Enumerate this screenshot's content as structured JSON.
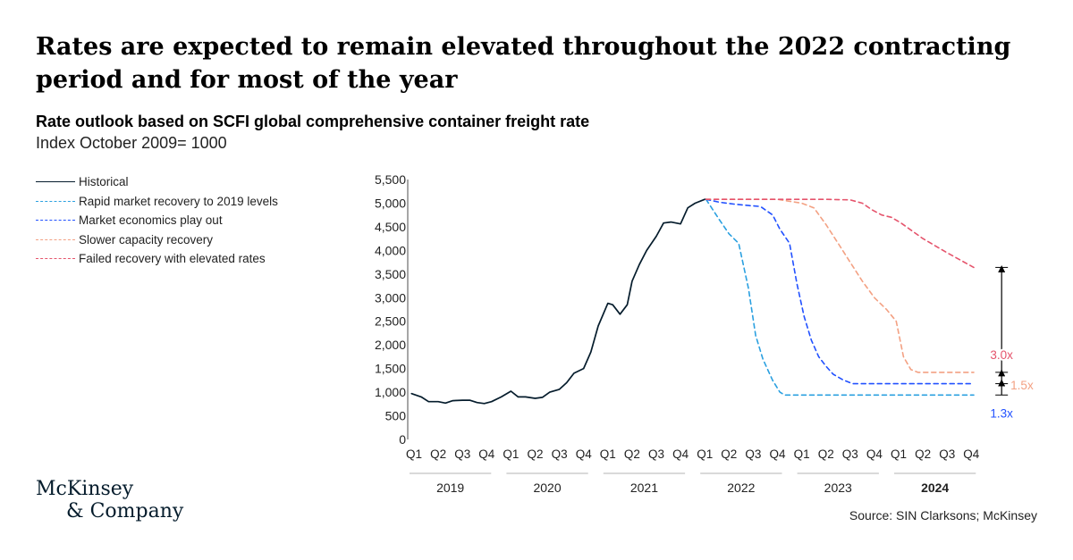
{
  "headline": "Rates are expected to remain elevated throughout the 2022 contracting period and for most of the year",
  "logo": {
    "line1": "McKinsey",
    "line2": "& Company"
  },
  "source": "Source: SIN Clarksons; McKinsey",
  "chart_data": {
    "type": "line",
    "title": "Rate outlook based on SCFI global comprehensive container freight rate",
    "subtitle": "Index October 2009= 1000",
    "xlabel": "",
    "ylabel": "",
    "ylim": [
      0,
      5500
    ],
    "y_ticks": [
      0,
      500,
      1000,
      1500,
      2000,
      2500,
      3000,
      3500,
      4000,
      4500,
      5000,
      5500
    ],
    "y_tick_labels": [
      "0",
      "500",
      "1,000",
      "1,500",
      "2,000",
      "2,500",
      "3,000",
      "3,500",
      "4,000",
      "4,500",
      "5,000",
      "5,500"
    ],
    "x_ticks": [
      "Q1",
      "Q2",
      "Q3",
      "Q4",
      "Q1",
      "Q2",
      "Q3",
      "Q4",
      "Q1",
      "Q2",
      "Q3",
      "Q4",
      "Q1",
      "Q2",
      "Q3",
      "Q4",
      "Q1",
      "Q2",
      "Q3",
      "Q4",
      "Q1",
      "Q2",
      "Q3",
      "Q4"
    ],
    "years": [
      "2019",
      "2020",
      "2021",
      "2022",
      "2023",
      "2024"
    ],
    "x_unit": "quarter index (0 = Q1 2019, 23 = Q4 2024)",
    "legend_position": "top-left",
    "grid": false,
    "series": [
      {
        "name": "Historical",
        "color": "#051c2c",
        "dash": "solid",
        "x": [
          -0.1,
          0.3,
          0.6,
          1,
          1.3,
          1.6,
          2,
          2.3,
          2.6,
          2.9,
          3.2,
          3.6,
          4,
          4.3,
          4.6,
          5,
          5.3,
          5.6,
          6,
          6.3,
          6.6,
          7,
          7.3,
          7.6,
          8,
          8.2,
          8.5,
          8.8,
          9,
          9.3,
          9.6,
          10,
          10.3,
          10.6,
          11,
          11.3,
          11.6,
          12,
          12.05
        ],
        "y": [
          970,
          900,
          800,
          800,
          770,
          820,
          830,
          830,
          780,
          760,
          800,
          900,
          1020,
          900,
          900,
          870,
          890,
          1000,
          1060,
          1200,
          1400,
          1500,
          1850,
          2400,
          2880,
          2850,
          2650,
          2850,
          3350,
          3700,
          4000,
          4300,
          4580,
          4600,
          4560,
          4900,
          5000,
          5080,
          5080
        ]
      },
      {
        "name": "Rapid market recovery to 2019 levels",
        "color": "#2ba0e0",
        "dash": "dashed",
        "x": [
          12.05,
          12.6,
          13,
          13.4,
          13.8,
          14.1,
          14.4,
          14.8,
          15.1,
          15.3,
          16,
          17,
          18,
          19,
          20,
          21,
          22,
          23.1
        ],
        "y": [
          5080,
          4650,
          4350,
          4150,
          3200,
          2200,
          1700,
          1250,
          1000,
          940,
          940,
          940,
          940,
          940,
          940,
          940,
          940,
          940
        ]
      },
      {
        "name": "Market economics play out",
        "color": "#2251ff",
        "dash": "dashed",
        "x": [
          12.05,
          12.6,
          13.2,
          13.8,
          14.3,
          14.8,
          15.1,
          15.5,
          15.8,
          16.1,
          16.4,
          16.7,
          17,
          17.3,
          17.7,
          18.1,
          18.5,
          18.9,
          19.3,
          19.5,
          20,
          21,
          22,
          23.1
        ],
        "y": [
          5080,
          5020,
          4980,
          4950,
          4930,
          4750,
          4450,
          4150,
          3300,
          2600,
          2100,
          1750,
          1550,
          1380,
          1260,
          1180,
          1180,
          1180,
          1180,
          1180,
          1180,
          1180,
          1180,
          1180
        ],
        "label": "1.3x",
        "label_color": "#2251ff"
      },
      {
        "name": "Slower capacity recovery",
        "color": "#f3a183",
        "dash": "dashed",
        "x": [
          12.05,
          13,
          14,
          15,
          16,
          16.5,
          17,
          17.5,
          18,
          18.5,
          19,
          19.5,
          19.9,
          20.2,
          20.5,
          20.8,
          21,
          22,
          23.1
        ],
        "y": [
          5080,
          5080,
          5080,
          5080,
          5000,
          4900,
          4550,
          4150,
          3750,
          3350,
          3000,
          2750,
          2500,
          1750,
          1480,
          1420,
          1420,
          1420,
          1420
        ],
        "label": "1.5x",
        "label_color": "#f3a183"
      },
      {
        "name": "Failed recovery with elevated rates",
        "color": "#e5546c",
        "dash": "dashed",
        "x": [
          12.05,
          13,
          14,
          15,
          16,
          17,
          18,
          18.5,
          18.9,
          19.3,
          19.7,
          20.1,
          21,
          22,
          23.1
        ],
        "y": [
          5080,
          5080,
          5080,
          5080,
          5080,
          5080,
          5070,
          5000,
          4860,
          4750,
          4700,
          4580,
          4250,
          3950,
          3640
        ],
        "label": "3.0x",
        "label_color": "#e5546c"
      }
    ]
  }
}
